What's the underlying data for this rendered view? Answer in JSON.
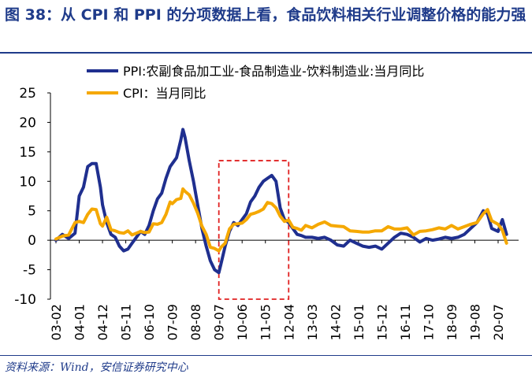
{
  "title": "图 38：从 CPI 和 PPI 的分项数据上看，食品饮料相关行业调整价格的能力强",
  "source": "资料来源：Wind，安信证券研究中心",
  "chart_data": {
    "type": "line",
    "title": "",
    "xlabel": "",
    "ylabel": "",
    "ylim": [
      -10,
      25
    ],
    "yticks": [
      -10,
      -5,
      0,
      5,
      10,
      15,
      20,
      25
    ],
    "xtick_labels": [
      "03-02",
      "04-01",
      "04-12",
      "05-11",
      "06-10",
      "07-09",
      "08-08",
      "09-07",
      "10-06",
      "11-05",
      "12-04",
      "13-03",
      "14-02",
      "15-01",
      "15-12",
      "16-11",
      "17-10",
      "18-09",
      "19-08",
      "20-07"
    ],
    "legend_placement": "top-center",
    "grid": false,
    "x_start": "2003-02",
    "highlight_box": {
      "x_from": "2009-07",
      "x_to": "2012-04",
      "y_from": -10,
      "y_to": 13.5,
      "style": "red-dashed"
    },
    "series": [
      {
        "name": "PPI:农副食品加工业-食品制造业-饮料制造业:当月同比",
        "color": "#1f2f8f",
        "points": [
          [
            "2003-02",
            0.0
          ],
          [
            "2003-05",
            1.0
          ],
          [
            "2003-08",
            0.3
          ],
          [
            "2003-11",
            1.2
          ],
          [
            "2004-01",
            7.5
          ],
          [
            "2004-03",
            9.0
          ],
          [
            "2004-05",
            12.5
          ],
          [
            "2004-07",
            13.0
          ],
          [
            "2004-09",
            13.0
          ],
          [
            "2004-11",
            9.0
          ],
          [
            "2004-12",
            6.0
          ],
          [
            "2005-02",
            3.0
          ],
          [
            "2005-04",
            1.0
          ],
          [
            "2005-06",
            0.5
          ],
          [
            "2005-08",
            -1.0
          ],
          [
            "2005-10",
            -1.8
          ],
          [
            "2005-12",
            -1.5
          ],
          [
            "2006-02",
            -0.5
          ],
          [
            "2006-04",
            0.5
          ],
          [
            "2006-06",
            1.5
          ],
          [
            "2006-08",
            1.0
          ],
          [
            "2006-10",
            2.5
          ],
          [
            "2006-12",
            5.0
          ],
          [
            "2007-02",
            7.0
          ],
          [
            "2007-04",
            8.0
          ],
          [
            "2007-06",
            10.5
          ],
          [
            "2007-08",
            12.5
          ],
          [
            "2007-09",
            13.0
          ],
          [
            "2007-11",
            14.0
          ],
          [
            "2008-01",
            17.0
          ],
          [
            "2008-02",
            18.8
          ],
          [
            "2008-03",
            17.5
          ],
          [
            "2008-05",
            13.5
          ],
          [
            "2008-07",
            10.0
          ],
          [
            "2008-09",
            6.0
          ],
          [
            "2008-11",
            2.0
          ],
          [
            "2009-01",
            -1.0
          ],
          [
            "2009-03",
            -3.5
          ],
          [
            "2009-05",
            -5.0
          ],
          [
            "2009-07",
            -5.5
          ],
          [
            "2009-08",
            -4.0
          ],
          [
            "2009-10",
            -1.0
          ],
          [
            "2009-12",
            1.5
          ],
          [
            "2010-02",
            3.0
          ],
          [
            "2010-04",
            2.5
          ],
          [
            "2010-06",
            3.5
          ],
          [
            "2010-08",
            4.5
          ],
          [
            "2010-10",
            6.5
          ],
          [
            "2010-12",
            7.5
          ],
          [
            "2011-02",
            9.0
          ],
          [
            "2011-04",
            10.0
          ],
          [
            "2011-06",
            10.5
          ],
          [
            "2011-08",
            11.0
          ],
          [
            "2011-10",
            10.0
          ],
          [
            "2011-12",
            5.5
          ],
          [
            "2012-02",
            3.5
          ],
          [
            "2012-04",
            3.0
          ],
          [
            "2012-06",
            2.0
          ],
          [
            "2012-08",
            1.0
          ],
          [
            "2012-10",
            0.8
          ],
          [
            "2012-12",
            0.5
          ],
          [
            "2013-03",
            0.5
          ],
          [
            "2013-06",
            0.3
          ],
          [
            "2013-09",
            0.5
          ],
          [
            "2013-12",
            0.0
          ],
          [
            "2014-03",
            -0.8
          ],
          [
            "2014-06",
            -1.0
          ],
          [
            "2014-09",
            0.0
          ],
          [
            "2014-12",
            -0.5
          ],
          [
            "2015-03",
            -1.0
          ],
          [
            "2015-06",
            -1.2
          ],
          [
            "2015-09",
            -1.0
          ],
          [
            "2015-12",
            -1.5
          ],
          [
            "2016-03",
            -0.5
          ],
          [
            "2016-06",
            0.5
          ],
          [
            "2016-09",
            1.2
          ],
          [
            "2016-12",
            1.0
          ],
          [
            "2017-03",
            0.5
          ],
          [
            "2017-06",
            -0.3
          ],
          [
            "2017-09",
            0.3
          ],
          [
            "2017-12",
            0.0
          ],
          [
            "2018-03",
            0.2
          ],
          [
            "2018-06",
            0.5
          ],
          [
            "2018-09",
            0.3
          ],
          [
            "2018-12",
            0.5
          ],
          [
            "2019-03",
            1.0
          ],
          [
            "2019-06",
            2.0
          ],
          [
            "2019-09",
            3.0
          ],
          [
            "2019-12",
            5.0
          ],
          [
            "2020-02",
            4.5
          ],
          [
            "2020-04",
            2.0
          ],
          [
            "2020-07",
            1.5
          ],
          [
            "2020-09",
            3.5
          ],
          [
            "2020-11",
            1.0
          ]
        ]
      },
      {
        "name": "CPI：当月同比",
        "color": "#f5a800",
        "points": [
          [
            "2003-02",
            0.2
          ],
          [
            "2003-05",
            0.7
          ],
          [
            "2003-08",
            0.9
          ],
          [
            "2003-11",
            3.0
          ],
          [
            "2004-01",
            3.2
          ],
          [
            "2004-03",
            3.0
          ],
          [
            "2004-05",
            4.4
          ],
          [
            "2004-07",
            5.3
          ],
          [
            "2004-09",
            5.2
          ],
          [
            "2004-11",
            2.8
          ],
          [
            "2004-12",
            2.4
          ],
          [
            "2005-02",
            3.9
          ],
          [
            "2005-04",
            1.8
          ],
          [
            "2005-06",
            1.6
          ],
          [
            "2005-08",
            1.3
          ],
          [
            "2005-10",
            1.2
          ],
          [
            "2005-12",
            1.6
          ],
          [
            "2006-02",
            0.9
          ],
          [
            "2006-04",
            1.2
          ],
          [
            "2006-06",
            1.5
          ],
          [
            "2006-08",
            1.3
          ],
          [
            "2006-10",
            1.4
          ],
          [
            "2006-12",
            2.8
          ],
          [
            "2007-02",
            2.7
          ],
          [
            "2007-04",
            3.0
          ],
          [
            "2007-06",
            4.4
          ],
          [
            "2007-08",
            6.5
          ],
          [
            "2007-09",
            6.2
          ],
          [
            "2007-11",
            6.9
          ],
          [
            "2008-01",
            7.1
          ],
          [
            "2008-02",
            8.7
          ],
          [
            "2008-03",
            8.3
          ],
          [
            "2008-05",
            7.7
          ],
          [
            "2008-07",
            6.3
          ],
          [
            "2008-09",
            4.6
          ],
          [
            "2008-11",
            2.4
          ],
          [
            "2009-01",
            1.0
          ],
          [
            "2009-03",
            -1.2
          ],
          [
            "2009-05",
            -1.4
          ],
          [
            "2009-07",
            -1.8
          ],
          [
            "2009-08",
            -1.2
          ],
          [
            "2009-10",
            -0.5
          ],
          [
            "2009-12",
            1.9
          ],
          [
            "2010-02",
            2.7
          ],
          [
            "2010-04",
            2.8
          ],
          [
            "2010-06",
            2.9
          ],
          [
            "2010-08",
            3.5
          ],
          [
            "2010-10",
            4.4
          ],
          [
            "2010-12",
            4.6
          ],
          [
            "2011-02",
            4.9
          ],
          [
            "2011-04",
            5.3
          ],
          [
            "2011-06",
            6.4
          ],
          [
            "2011-08",
            6.2
          ],
          [
            "2011-10",
            5.5
          ],
          [
            "2011-12",
            4.1
          ],
          [
            "2012-02",
            3.2
          ],
          [
            "2012-04",
            3.4
          ],
          [
            "2012-06",
            2.2
          ],
          [
            "2012-08",
            2.0
          ],
          [
            "2012-10",
            1.7
          ],
          [
            "2012-12",
            2.5
          ],
          [
            "2013-03",
            2.1
          ],
          [
            "2013-06",
            2.7
          ],
          [
            "2013-09",
            3.1
          ],
          [
            "2013-12",
            2.5
          ],
          [
            "2014-03",
            2.4
          ],
          [
            "2014-06",
            2.3
          ],
          [
            "2014-09",
            1.6
          ],
          [
            "2014-12",
            1.5
          ],
          [
            "2015-03",
            1.4
          ],
          [
            "2015-06",
            1.4
          ],
          [
            "2015-09",
            1.6
          ],
          [
            "2015-12",
            1.6
          ],
          [
            "2016-03",
            2.3
          ],
          [
            "2016-06",
            1.9
          ],
          [
            "2016-09",
            1.9
          ],
          [
            "2016-12",
            2.1
          ],
          [
            "2017-03",
            0.9
          ],
          [
            "2017-06",
            1.5
          ],
          [
            "2017-09",
            1.6
          ],
          [
            "2017-12",
            1.8
          ],
          [
            "2018-03",
            2.1
          ],
          [
            "2018-06",
            1.9
          ],
          [
            "2018-09",
            2.5
          ],
          [
            "2018-12",
            1.9
          ],
          [
            "2019-03",
            2.3
          ],
          [
            "2019-06",
            2.7
          ],
          [
            "2019-09",
            3.0
          ],
          [
            "2019-12",
            4.5
          ],
          [
            "2020-02",
            5.2
          ],
          [
            "2020-04",
            3.3
          ],
          [
            "2020-07",
            2.7
          ],
          [
            "2020-09",
            1.7
          ],
          [
            "2020-11",
            -0.5
          ]
        ]
      }
    ]
  }
}
